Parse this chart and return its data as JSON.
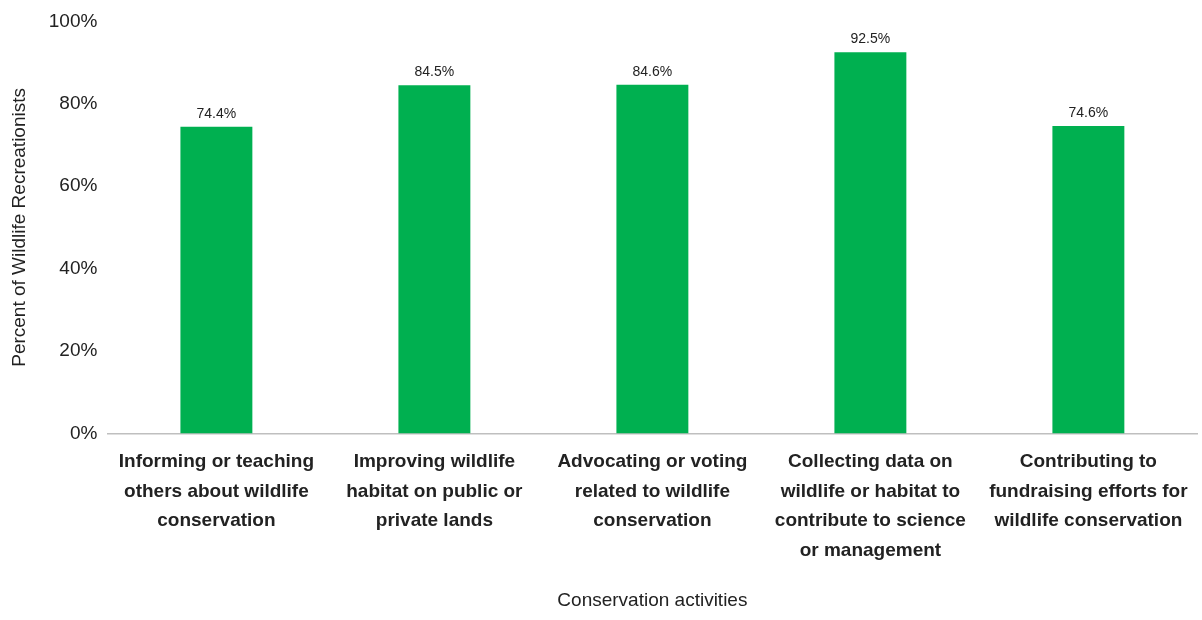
{
  "chart_data": {
    "type": "bar",
    "xlabel": "Conservation activities",
    "ylabel": "Percent of Wildlife Recreationists",
    "categories": [
      "Informing or teaching others about wildlife conservation",
      "Improving wildlife habitat on public or private lands",
      "Advocating or voting related to wildlife conservation",
      "Collecting data on wildlife or habitat to contribute to science or management",
      "Contributing to fundraising efforts for wildlife conservation"
    ],
    "values": [
      74.4,
      84.5,
      84.6,
      92.5,
      74.6
    ],
    "value_labels": [
      "74.4%",
      "84.5%",
      "84.6%",
      "92.5%",
      "74.6%"
    ],
    "color": "#00b050",
    "ylim": [
      0,
      100
    ],
    "yticks": [
      {
        "value": 0,
        "label": "0%"
      },
      {
        "value": 20,
        "label": "20%"
      },
      {
        "value": 40,
        "label": "40%"
      },
      {
        "value": 60,
        "label": "60%"
      },
      {
        "value": 80,
        "label": "80%"
      },
      {
        "value": 100,
        "label": "100%"
      }
    ],
    "grid": false,
    "legend": false
  }
}
